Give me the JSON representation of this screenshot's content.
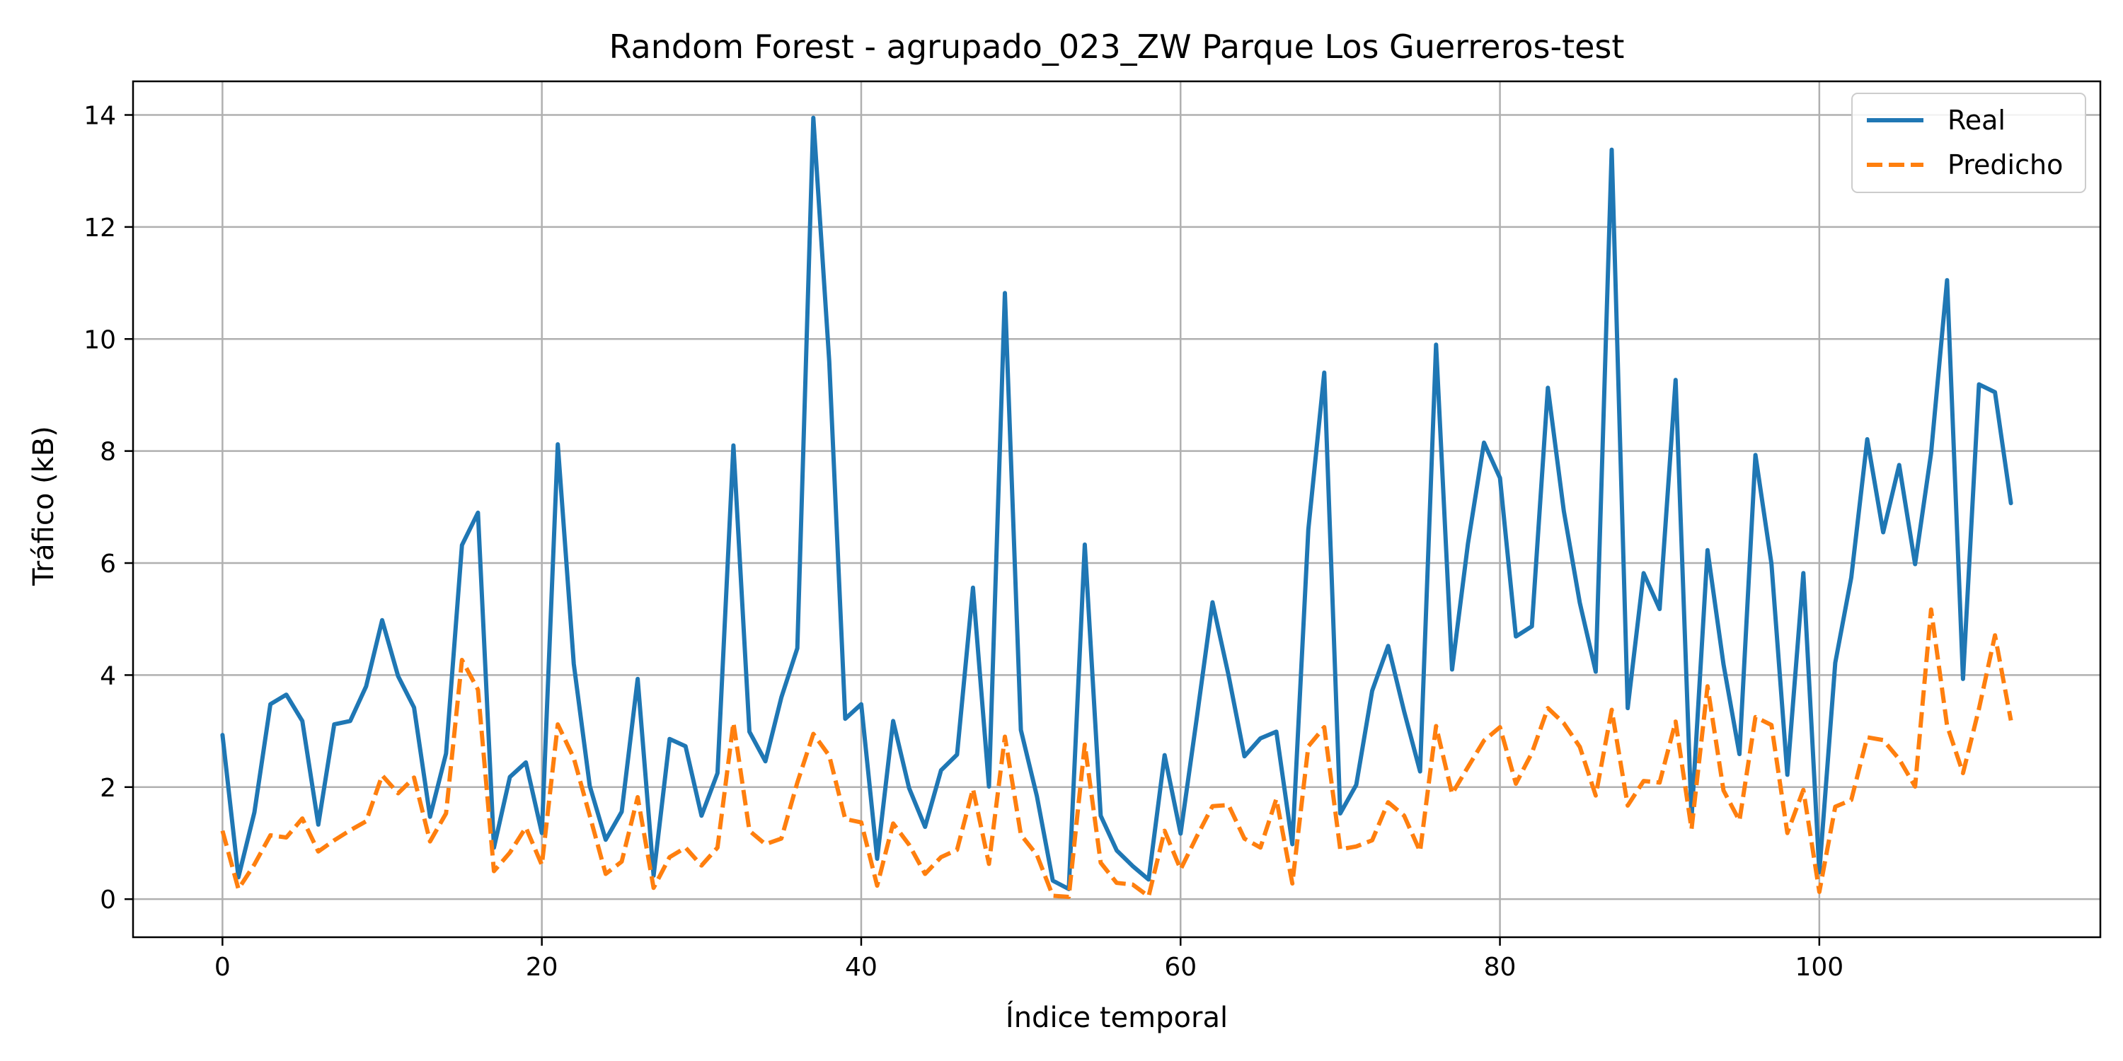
{
  "chart_data": {
    "type": "line",
    "title": "Random Forest - agrupado_023_ZW Parque Los Guerreros-test",
    "xlabel": "Índice temporal",
    "ylabel": "Tráfico (kB)",
    "xlim": [
      -5.6,
      117.6
    ],
    "ylim": [
      -0.68,
      14.6
    ],
    "xticks": [
      0,
      20,
      40,
      60,
      80,
      100
    ],
    "yticks": [
      0,
      2,
      4,
      6,
      8,
      10,
      12,
      14
    ],
    "grid": true,
    "legend_position": "top-right",
    "series": [
      {
        "name": "Real",
        "color": "#1f77b4",
        "style": "solid",
        "values": [
          2.93,
          0.39,
          1.55,
          3.48,
          3.65,
          3.18,
          1.33,
          3.12,
          3.18,
          3.8,
          4.98,
          3.98,
          3.42,
          1.47,
          2.6,
          6.32,
          6.9,
          0.92,
          2.18,
          2.44,
          1.18,
          8.12,
          4.2,
          2.02,
          1.06,
          1.56,
          3.93,
          0.42,
          2.86,
          2.73,
          1.49,
          2.25,
          8.1,
          2.99,
          2.46,
          3.6,
          4.48,
          13.95,
          9.6,
          3.22,
          3.48,
          0.72,
          3.18,
          1.98,
          1.29,
          2.3,
          2.58,
          5.56,
          2.01,
          10.82,
          3.02,
          1.84,
          0.33,
          0.18,
          6.33,
          1.49,
          0.87,
          0.59,
          0.35,
          2.57,
          1.17,
          3.2,
          5.3,
          4.0,
          2.55,
          2.87,
          2.99,
          0.98,
          6.6,
          9.4,
          1.53,
          2.04,
          3.72,
          4.52,
          3.35,
          2.28,
          9.9,
          4.1,
          6.35,
          8.15,
          7.52,
          4.69,
          4.87,
          9.13,
          6.93,
          5.29,
          4.06,
          13.38,
          3.41,
          5.82,
          5.18,
          9.27,
          1.44,
          6.23,
          4.19,
          2.59,
          7.93,
          5.99,
          2.22,
          5.82,
          0.48,
          4.22,
          5.74,
          8.21,
          6.55,
          7.75,
          5.98,
          7.96,
          11.05,
          3.93,
          9.19,
          9.05,
          7.07
        ]
      },
      {
        "name": "Predicho",
        "color": "#ff7f0e",
        "style": "dashed",
        "values": [
          1.22,
          0.18,
          0.62,
          1.14,
          1.1,
          1.44,
          0.85,
          1.05,
          1.23,
          1.39,
          2.21,
          1.89,
          2.17,
          1.03,
          1.53,
          4.27,
          3.74,
          0.5,
          0.83,
          1.28,
          0.61,
          3.12,
          2.52,
          1.49,
          0.45,
          0.67,
          1.82,
          0.2,
          0.75,
          0.92,
          0.6,
          0.92,
          3.15,
          1.22,
          0.98,
          1.08,
          2.08,
          2.95,
          2.56,
          1.43,
          1.37,
          0.24,
          1.35,
          0.97,
          0.45,
          0.75,
          0.88,
          1.97,
          0.63,
          2.9,
          1.15,
          0.79,
          0.06,
          0.04,
          2.76,
          0.65,
          0.29,
          0.26,
          0.05,
          1.22,
          0.53,
          1.11,
          1.66,
          1.68,
          1.08,
          0.92,
          1.79,
          0.28,
          2.73,
          3.07,
          0.89,
          0.94,
          1.05,
          1.73,
          1.49,
          0.85,
          3.09,
          1.88,
          2.36,
          2.83,
          3.07,
          2.06,
          2.61,
          3.41,
          3.14,
          2.72,
          1.85,
          3.38,
          1.67,
          2.11,
          2.08,
          3.17,
          1.25,
          3.8,
          1.94,
          1.4,
          3.25,
          3.11,
          1.18,
          1.95,
          0.13,
          1.65,
          1.77,
          2.89,
          2.84,
          2.5,
          2.01,
          5.17,
          3.1,
          2.25,
          3.4,
          4.71,
          3.19
        ]
      }
    ]
  }
}
